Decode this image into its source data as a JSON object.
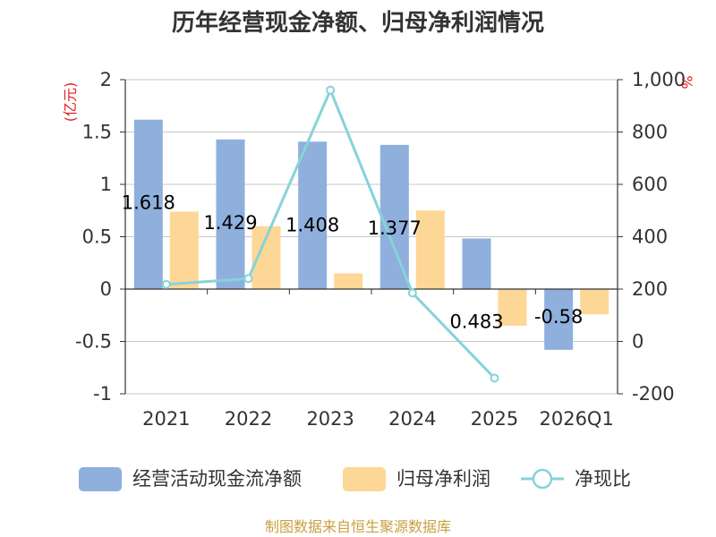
{
  "chart_data": {
    "type": "bar",
    "title": "历年经营现金净额、归母净利润情况",
    "categories": [
      "2021",
      "2022",
      "2023",
      "2024",
      "2025",
      "2026Q1"
    ],
    "y_left": {
      "unit": "(亿元)",
      "ticks": [
        "2",
        "1.5",
        "1",
        "0.5",
        "0",
        "-0.5",
        "-1"
      ],
      "ylim": [
        -1,
        2
      ]
    },
    "y_right": {
      "unit": "%",
      "ticks": [
        "1,000",
        "800",
        "600",
        "400",
        "200",
        "0",
        "-200"
      ],
      "ylim": [
        -200,
        1000
      ]
    },
    "series": [
      {
        "name": "经营活动现金流净额",
        "type": "bar",
        "axis": "left",
        "color": "#8fafdc",
        "values": [
          1.618,
          1.429,
          1.408,
          1.377,
          0.483,
          -0.58
        ],
        "labels": [
          "1.618",
          "1.429",
          "1.408",
          "1.377",
          "0.483",
          "-0.58"
        ]
      },
      {
        "name": "归母净利润",
        "type": "bar",
        "axis": "left",
        "color": "#fdd795",
        "values": [
          0.74,
          0.6,
          0.15,
          0.75,
          -0.35,
          -0.24
        ]
      },
      {
        "name": "净现比",
        "type": "line",
        "axis": "right",
        "color": "#86d3d8",
        "values": [
          218,
          240,
          960,
          185,
          -140,
          null
        ]
      }
    ],
    "grid": true,
    "legend_position": "bottom"
  },
  "footer": "制图数据来自恒生聚源数据库"
}
